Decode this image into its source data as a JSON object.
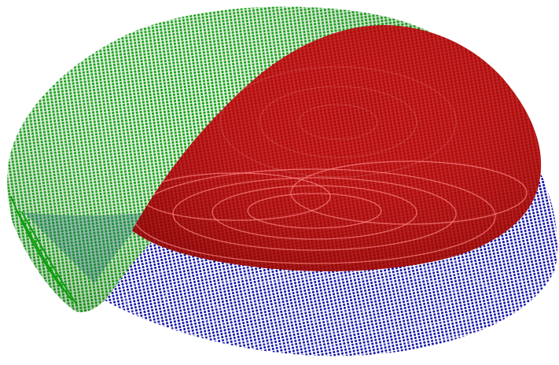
{
  "scene": {
    "background": "#ffffff",
    "surfaces": [
      {
        "id": "blue",
        "color": "#1010a8",
        "highlight": "#6a6ae0"
      },
      {
        "id": "green",
        "color": "#10a010",
        "highlight": "#60d060"
      },
      {
        "id": "red",
        "color": "#b80a0a",
        "highlight": "#ff7070"
      }
    ],
    "render_style": "point-cloud"
  }
}
